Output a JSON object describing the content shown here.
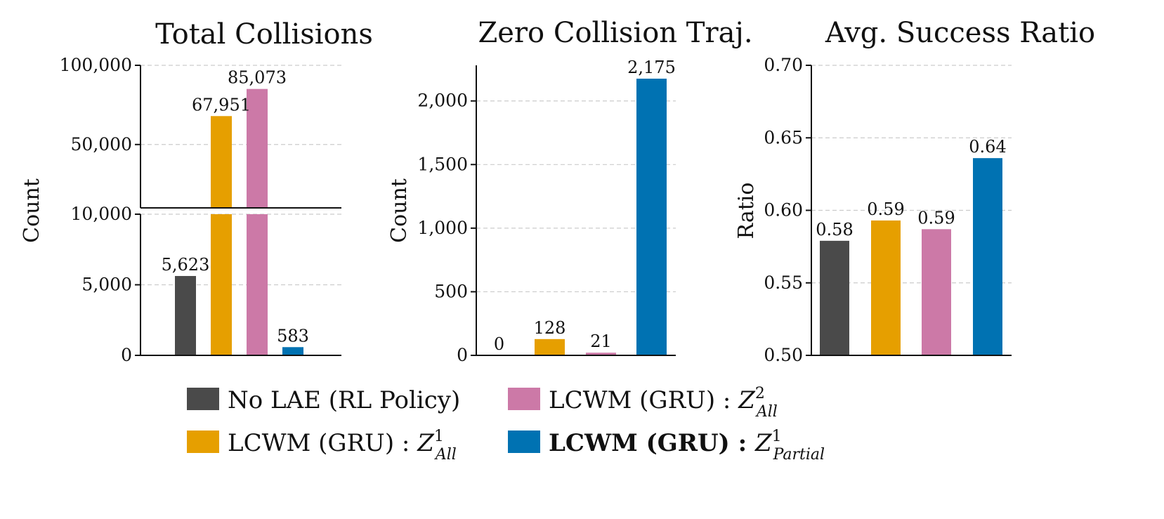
{
  "colors": {
    "no_lae": "#4a4a4a",
    "z1_all": "#e69f00",
    "z2_all": "#cc79a7",
    "z1_partial": "#0072b2"
  },
  "legend": {
    "entries": [
      {
        "key": "no_lae",
        "text": "No LAE (RL Policy)",
        "bold": false
      },
      {
        "key": "z2_all",
        "text": "LCWM (GRU) : ",
        "math_base": "Z",
        "math_sup": "2",
        "math_sub": "All",
        "bold": false
      },
      {
        "key": "z1_all",
        "text": "LCWM (GRU) : ",
        "math_base": "Z",
        "math_sup": "1",
        "math_sub": "All",
        "bold": false
      },
      {
        "key": "z1_partial",
        "text": "LCWM (GRU) : ",
        "math_base": "Z",
        "math_sup": "1",
        "math_sub": "Partial",
        "bold": true
      }
    ]
  },
  "chart_data": [
    {
      "type": "bar",
      "title": "Total Collisions",
      "ylabel": "Count",
      "broken_axis": true,
      "series_keys": [
        "no_lae",
        "z1_all",
        "z2_all",
        "z1_partial"
      ],
      "values": [
        5623,
        67951,
        85073,
        583
      ],
      "data_labels": [
        "5,623",
        "67,951",
        "85,073",
        "583"
      ],
      "upper_ylim": [
        10000,
        100000
      ],
      "upper_ticks": [
        50000,
        100000
      ],
      "upper_tick_labels": [
        "50,000",
        "100,000"
      ],
      "lower_ylim": [
        0,
        10000
      ],
      "lower_ticks": [
        0,
        5000,
        10000
      ],
      "lower_tick_labels": [
        "0",
        "5,000",
        "10,000"
      ]
    },
    {
      "type": "bar",
      "title": "Zero Collision Traj.",
      "ylabel": "Count",
      "series_keys": [
        "no_lae",
        "z1_all",
        "z2_all",
        "z1_partial"
      ],
      "values": [
        0,
        128,
        21,
        2175
      ],
      "data_labels": [
        "0",
        "128",
        "21",
        "2,175"
      ],
      "ylim": [
        0,
        2280
      ],
      "ticks": [
        0,
        500,
        1000,
        1500,
        2000
      ],
      "tick_labels": [
        "0",
        "500",
        "1,000",
        "1,500",
        "2,000"
      ]
    },
    {
      "type": "bar",
      "title": "Avg. Success Ratio",
      "ylabel": "Ratio",
      "series_keys": [
        "no_lae",
        "z1_all",
        "z2_all",
        "z1_partial"
      ],
      "values": [
        0.579,
        0.593,
        0.587,
        0.636
      ],
      "data_labels": [
        "0.58",
        "0.59",
        "0.59",
        "0.64"
      ],
      "ylim": [
        0.5,
        0.7
      ],
      "ticks": [
        0.5,
        0.55,
        0.6,
        0.65,
        0.7
      ],
      "tick_labels": [
        "0.50",
        "0.55",
        "0.60",
        "0.65",
        "0.70"
      ]
    }
  ]
}
